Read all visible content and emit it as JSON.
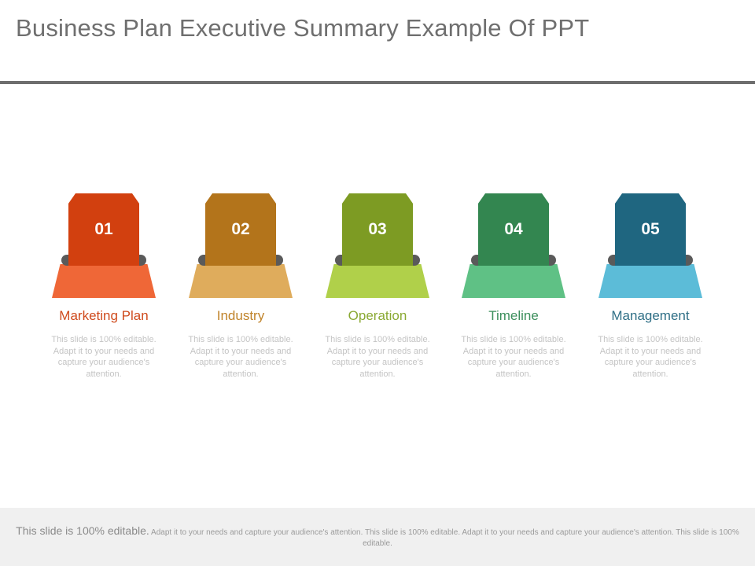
{
  "header": {
    "title": "Business Plan Executive Summary Example Of PPT"
  },
  "steps": [
    {
      "number": "01",
      "label": "Marketing Plan",
      "description": "This slide is 100% editable. Adapt it to your needs and capture your audience's attention.",
      "colors": {
        "tab": "#d2400f",
        "base": "#ef6737",
        "label": "#cf4a1c"
      }
    },
    {
      "number": "02",
      "label": "Industry",
      "description": "This slide is 100% editable. Adapt it to your needs and capture your audience's attention.",
      "colors": {
        "tab": "#b3741b",
        "base": "#dfac5c",
        "label": "#c0832a"
      }
    },
    {
      "number": "03",
      "label": "Operation",
      "description": "This slide is 100% editable. Adapt it to your needs and capture your audience's attention.",
      "colors": {
        "tab": "#7d9b23",
        "base": "#b0d04a",
        "label": "#8aa933"
      }
    },
    {
      "number": "04",
      "label": "Timeline",
      "description": "This slide is 100% editable. Adapt it to your needs and capture your audience's attention.",
      "colors": {
        "tab": "#338650",
        "base": "#5fc185",
        "label": "#3c8f5c"
      }
    },
    {
      "number": "05",
      "label": "Management",
      "description": "This slide is 100% editable. Adapt it to your needs and capture your audience's attention.",
      "colors": {
        "tab": "#1f6680",
        "base": "#5cbcd8",
        "label": "#2f6f86"
      }
    }
  ],
  "footer": {
    "lead": "This slide is 100% editable.",
    "text": "Adapt it to your needs and capture your audience's attention. This slide is 100% editable. Adapt it to your needs and capture your audience's attention. This slide is 100% editable."
  }
}
